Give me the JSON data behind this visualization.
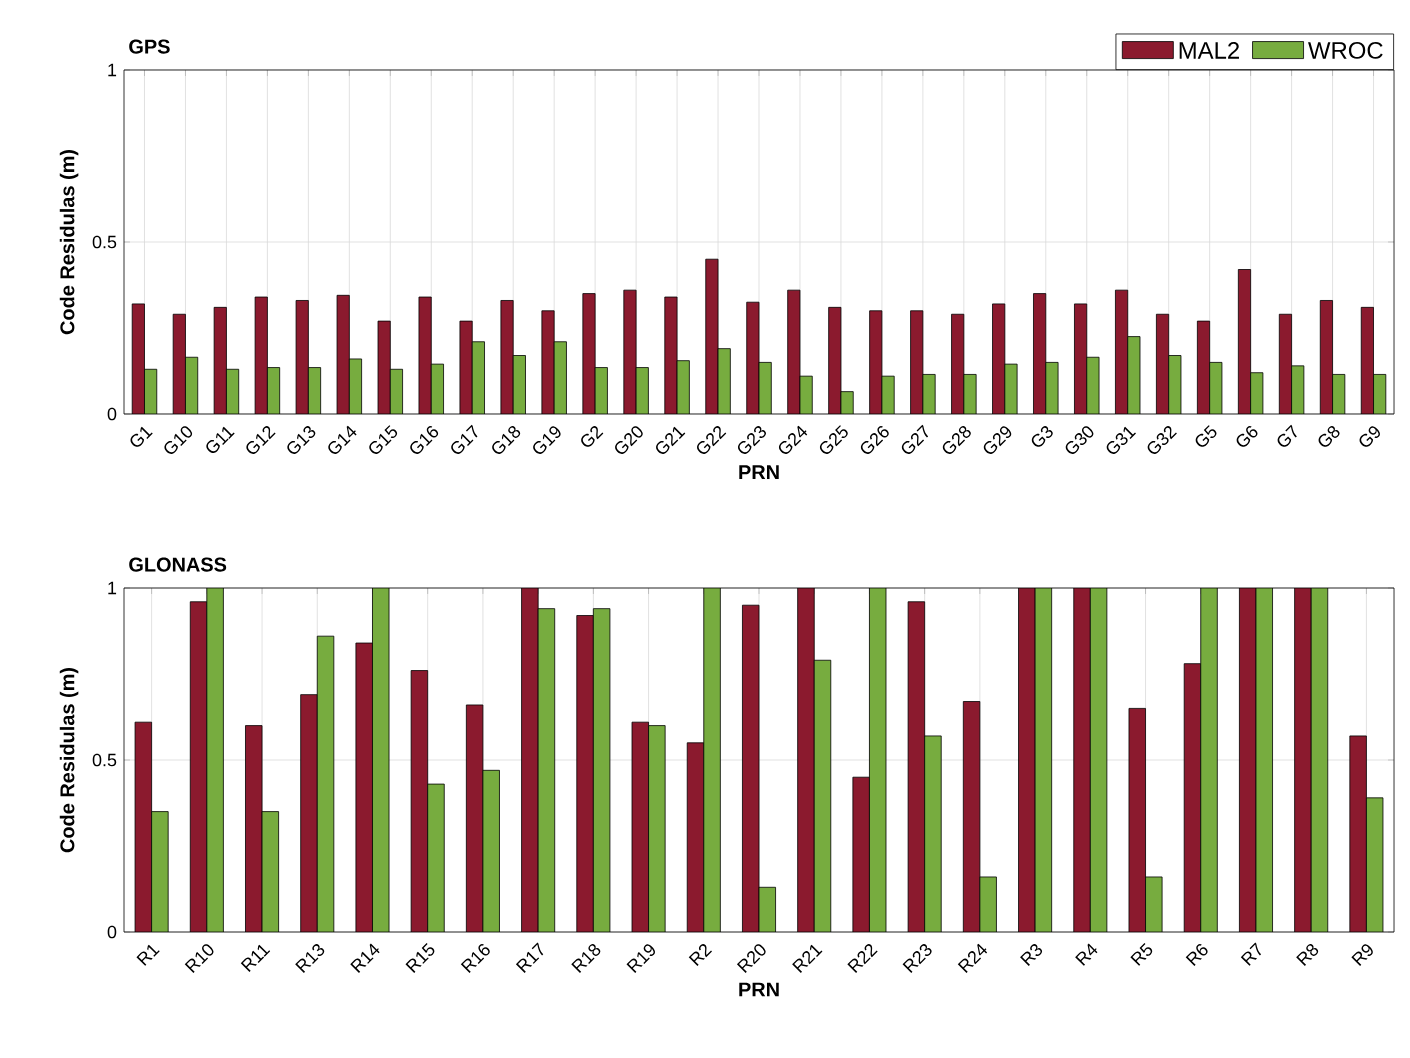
{
  "chart_data": [
    {
      "type": "bar",
      "title": "GPS",
      "xlabel": "PRN",
      "ylabel": "Code Residulas (m)",
      "categories": [
        "G1",
        "G10",
        "G11",
        "G12",
        "G13",
        "G14",
        "G15",
        "G16",
        "G17",
        "G18",
        "G19",
        "G2",
        "G20",
        "G21",
        "G22",
        "G23",
        "G24",
        "G25",
        "G26",
        "G27",
        "G28",
        "G29",
        "G3",
        "G30",
        "G31",
        "G32",
        "G5",
        "G6",
        "G7",
        "G8",
        "G9"
      ],
      "series": [
        {
          "name": "MAL2",
          "color": "#8b1a2e",
          "values": [
            0.32,
            0.29,
            0.31,
            0.34,
            0.33,
            0.345,
            0.27,
            0.34,
            0.27,
            0.33,
            0.3,
            0.35,
            0.36,
            0.34,
            0.45,
            0.325,
            0.36,
            0.31,
            0.3,
            0.3,
            0.29,
            0.32,
            0.35,
            0.32,
            0.36,
            0.29,
            0.27,
            0.42,
            0.29,
            0.33,
            0.31
          ]
        },
        {
          "name": "WROC",
          "color": "#77ac3f",
          "values": [
            0.13,
            0.165,
            0.13,
            0.135,
            0.135,
            0.16,
            0.13,
            0.145,
            0.21,
            0.17,
            0.21,
            0.135,
            0.135,
            0.155,
            0.19,
            0.15,
            0.11,
            0.065,
            0.11,
            0.115,
            0.115,
            0.145,
            0.15,
            0.165,
            0.225,
            0.17,
            0.15,
            0.12,
            0.14,
            0.115,
            0.115
          ]
        }
      ],
      "ylim": [
        0,
        1
      ],
      "yticks": [
        0,
        0.5,
        1
      ],
      "grid": true,
      "legend": "top right"
    },
    {
      "type": "bar",
      "title": "GLONASS",
      "xlabel": "PRN",
      "ylabel": "Code Residulas (m)",
      "categories": [
        "R1",
        "R10",
        "R11",
        "R13",
        "R14",
        "R15",
        "R16",
        "R17",
        "R18",
        "R19",
        "R2",
        "R20",
        "R21",
        "R22",
        "R23",
        "R24",
        "R3",
        "R4",
        "R5",
        "R6",
        "R7",
        "R8",
        "R9"
      ],
      "series": [
        {
          "color": "#8b1a2e",
          "values": [
            0.61,
            0.96,
            0.6,
            0.69,
            0.84,
            0.76,
            0.66,
            1,
            0.92,
            0.61,
            0.55,
            0.95,
            1,
            0.45,
            0.96,
            0.67,
            1,
            1,
            0.65,
            0.78,
            1,
            1,
            0.57
          ]
        },
        {
          "color": "#77ac3f",
          "values": [
            0.35,
            1,
            0.35,
            0.86,
            1,
            0.43,
            0.47,
            0.94,
            0.94,
            0.6,
            1,
            0.13,
            0.79,
            1,
            0.57,
            0.16,
            1,
            1,
            0.16,
            1,
            1,
            1,
            0.39
          ]
        }
      ],
      "ylim": [
        0,
        1
      ],
      "yticks": [
        0,
        0.5,
        1
      ],
      "grid": true
    }
  ]
}
